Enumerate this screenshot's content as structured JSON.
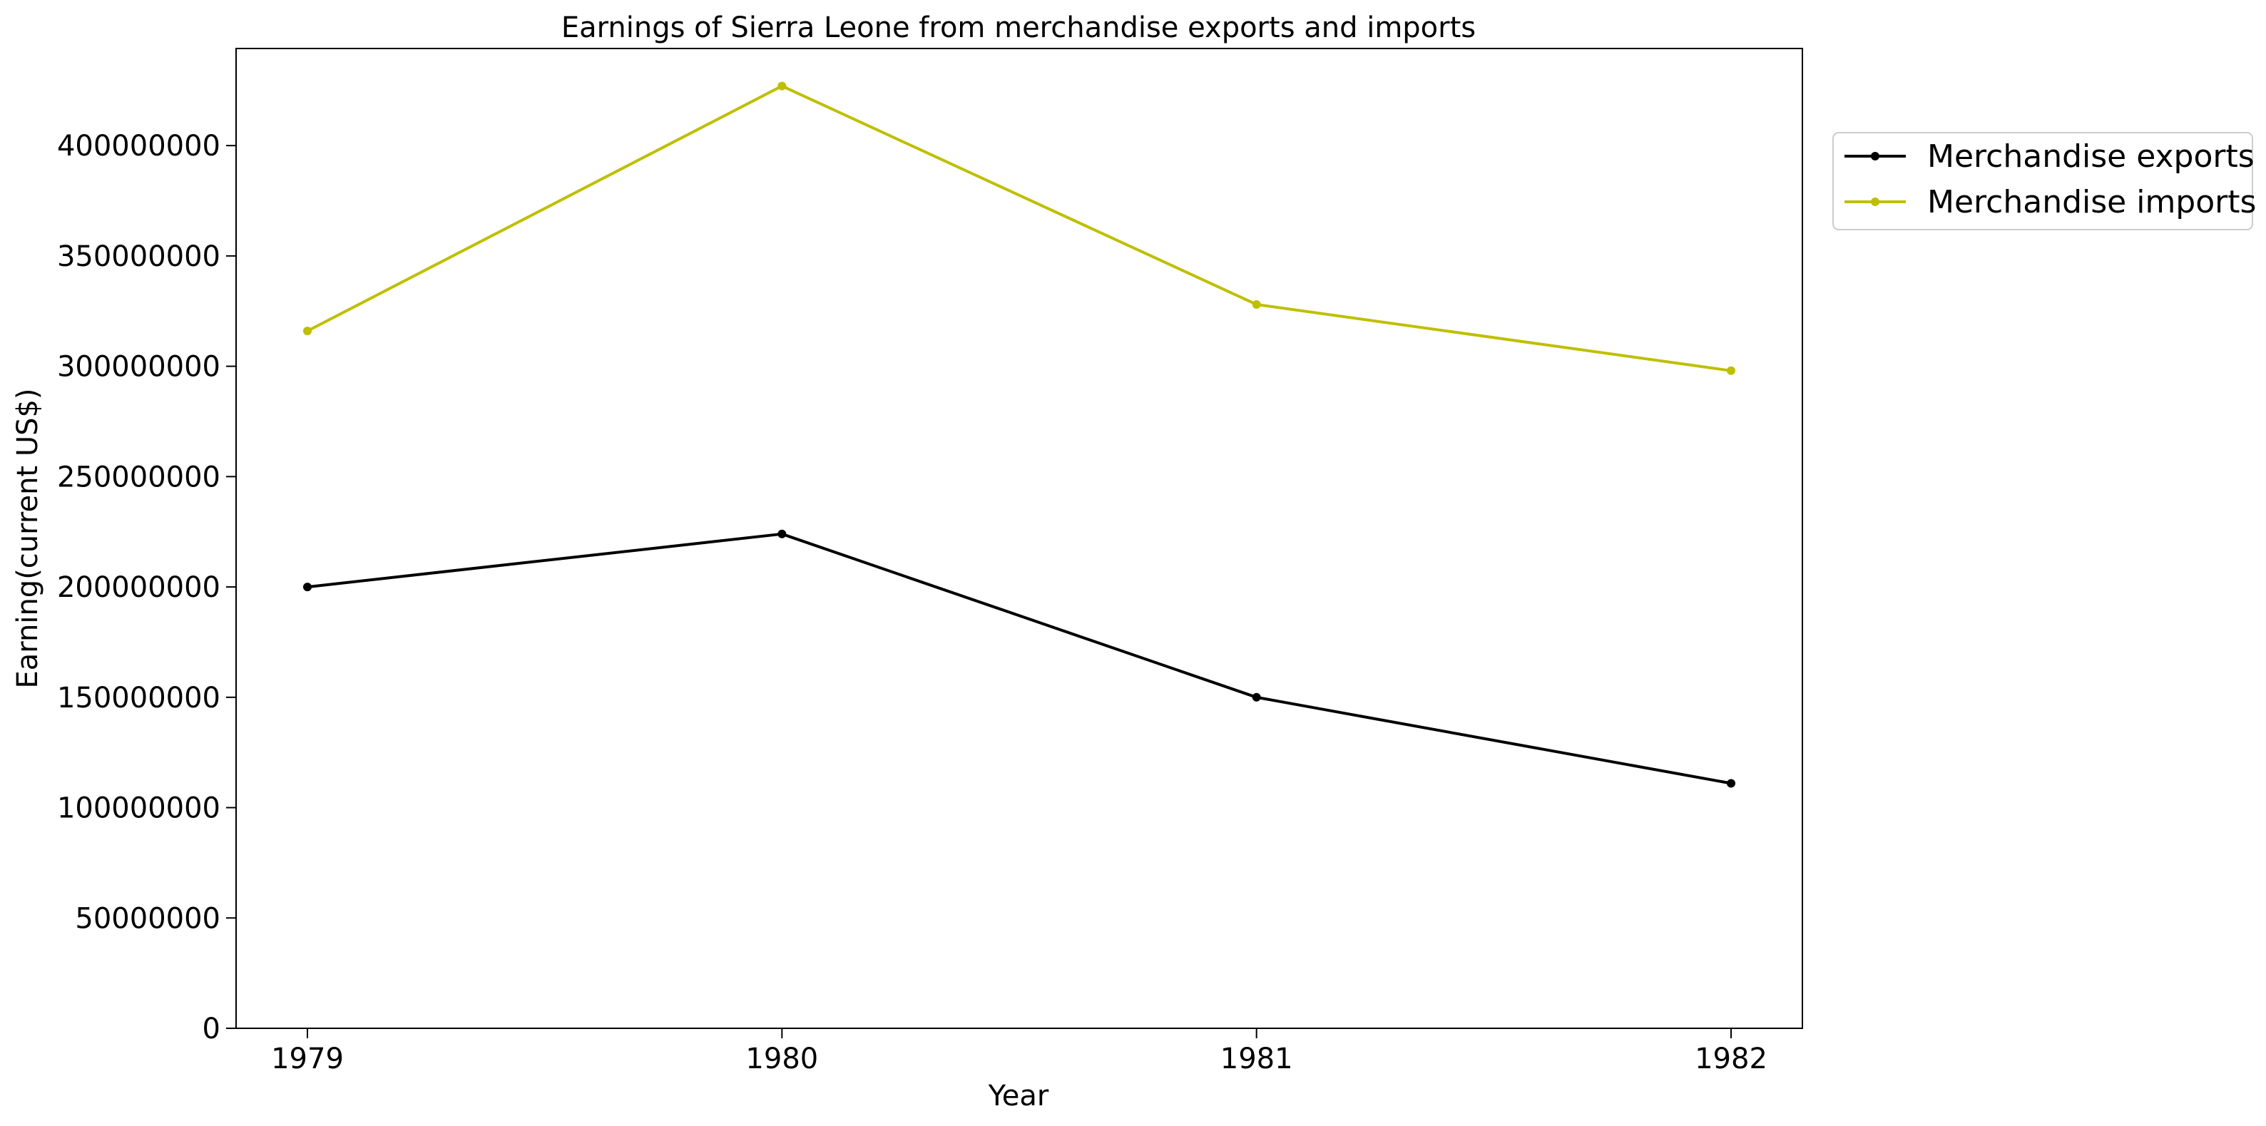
{
  "chart_data": {
    "type": "line",
    "title": "Earnings of Sierra Leone from merchandise exports and imports",
    "xlabel": "Year",
    "ylabel": "Earning(current US$)",
    "categories": [
      "1979",
      "1980",
      "1981",
      "1982"
    ],
    "ylim": [
      0,
      444000000
    ],
    "yticks": [
      0,
      50000000,
      100000000,
      150000000,
      200000000,
      250000000,
      300000000,
      350000000,
      400000000
    ],
    "ytick_labels": [
      "0",
      "50000000",
      "100000000",
      "150000000",
      "200000000",
      "250000000",
      "300000000",
      "350000000",
      "400000000"
    ],
    "grid": false,
    "legend_position": "outside-top-right",
    "series": [
      {
        "name": "Merchandise exports",
        "color": "#000000",
        "values": [
          200000000,
          224000000,
          150000000,
          111000000
        ]
      },
      {
        "name": "Merchandise imports",
        "color": "#bfbf00",
        "values": [
          316000000,
          427000000,
          328000000,
          298000000
        ]
      }
    ]
  }
}
